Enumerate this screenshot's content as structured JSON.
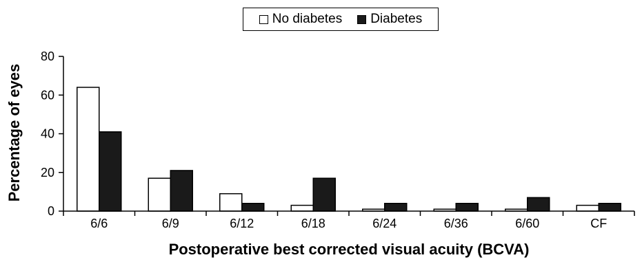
{
  "chart_data": {
    "type": "bar",
    "categories": [
      "6/6",
      "6/9",
      "6/12",
      "6/18",
      "6/24",
      "6/36",
      "6/60",
      "CF"
    ],
    "series": [
      {
        "name": "No diabetes",
        "values": [
          64,
          17,
          9,
          3,
          1,
          1,
          1,
          3
        ],
        "fill": "#ffffff",
        "stroke": "#000000"
      },
      {
        "name": "Diabetes",
        "values": [
          41,
          21,
          4,
          17,
          4,
          4,
          7,
          4
        ],
        "fill": "#1a1a1a",
        "stroke": "#000000"
      }
    ],
    "xlabel": "Postoperative best corrected visual acuity (BCVA)",
    "ylabel": "Percentage of eyes",
    "ylim": [
      0,
      80
    ],
    "yticks": [
      0,
      20,
      40,
      60,
      80
    ],
    "grid": false,
    "legend_position": "top-center"
  }
}
